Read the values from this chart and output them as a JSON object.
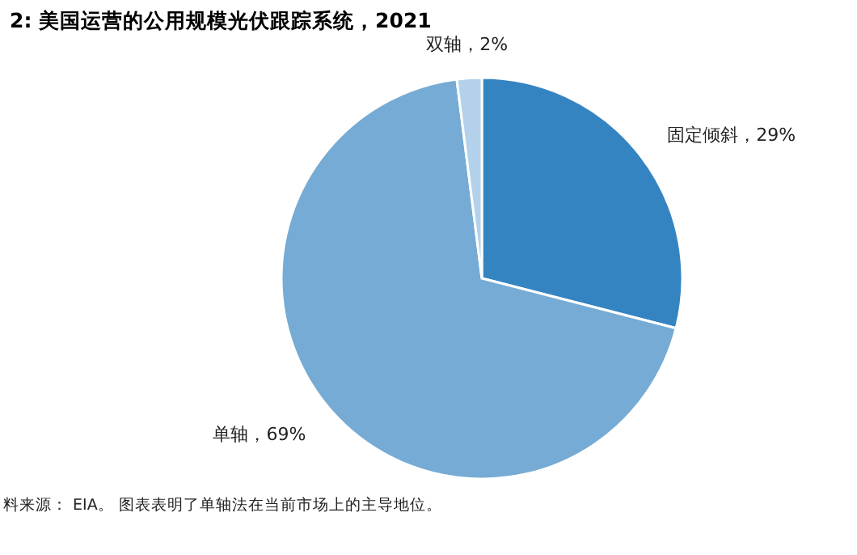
{
  "chart_data": {
    "type": "pie",
    "title": "2:  美国运营的公用规模光伏跟踪系统，2021",
    "categories": [
      "固定倾斜",
      "单轴",
      "双轴"
    ],
    "values": [
      29,
      69,
      2
    ],
    "value_labels": [
      "，29%",
      "，69%",
      "，2%"
    ],
    "colors": [
      "#3584c2",
      "#75abd4",
      "#b3d1ea"
    ],
    "annotations": [
      "料来源： EIA。 图表表明了单轴法在当前市场上的主导地位。"
    ]
  }
}
